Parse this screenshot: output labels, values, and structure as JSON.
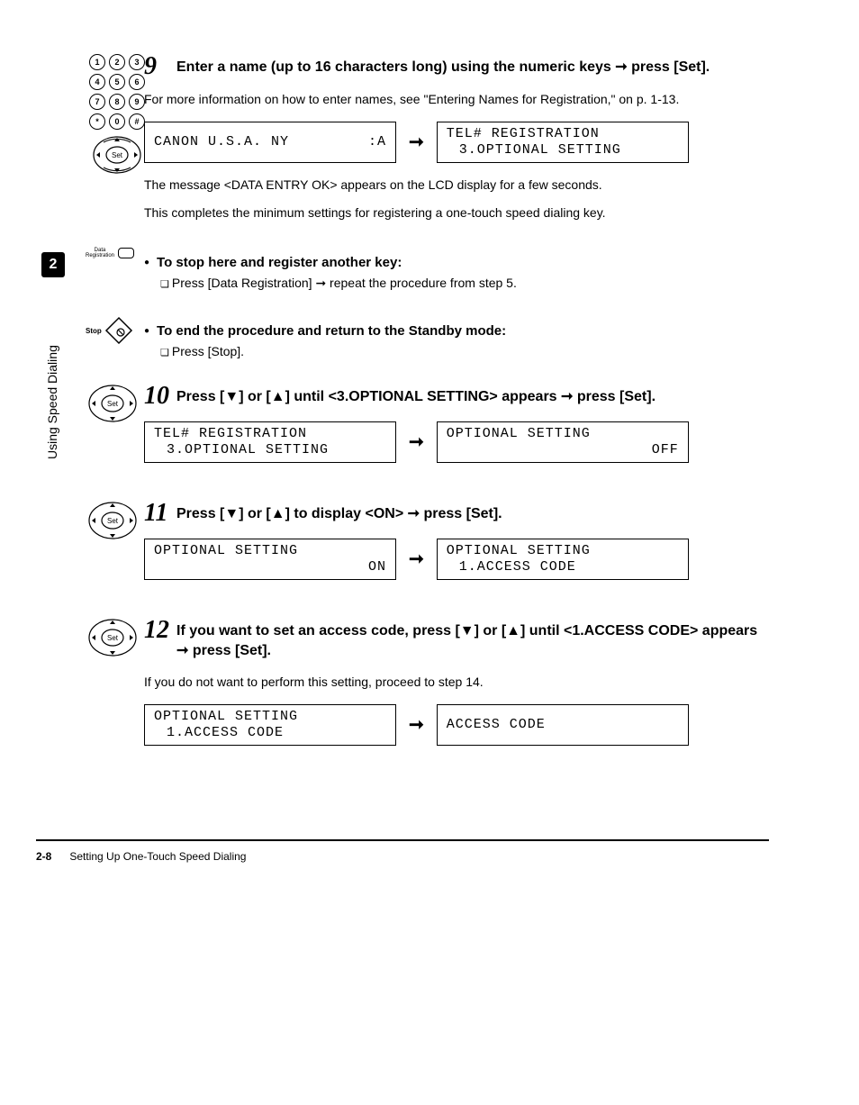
{
  "sidebar": {
    "chapter_num": "2",
    "chapter_title": "Using Speed Dialing"
  },
  "keypad": {
    "keys": [
      "1",
      "2",
      "3",
      "4",
      "5",
      "6",
      "7",
      "8",
      "9",
      "*",
      "0",
      "#"
    ]
  },
  "navset_label": "Set",
  "datareg": {
    "line1": "Data",
    "line2": "Registration"
  },
  "stop_label": "Stop",
  "steps": {
    "s9": {
      "num": "9",
      "title_a": "Enter a name (up to 16 characters long) using the numeric keys ",
      "title_b": " press [Set].",
      "body": "For more information on how to enter names, see \"Entering Names for Registration,\" on p. 1-13.",
      "lcd_a1": "CANON U.S.A. NY",
      "lcd_a2": ":A",
      "lcd_b1": "TEL# REGISTRATION",
      "lcd_b2": "3.OPTIONAL SETTING",
      "after1": "The message <DATA ENTRY OK> appears on the LCD display for a few seconds.",
      "after2": "This completes the minimum settings for registering a one-touch speed dialing key."
    },
    "sub1": {
      "head": "To stop here and register another key:",
      "body_a": "Press [Data Registration] ",
      "body_b": " repeat the procedure from step 5."
    },
    "sub2": {
      "head": "To end the procedure and return to the Standby mode:",
      "body": "Press [Stop]."
    },
    "s10": {
      "num": "10",
      "title_a": "Press [▼] or [▲] until <3.OPTIONAL SETTING> appears ",
      "title_b": " press [Set].",
      "lcd_a1": "TEL# REGISTRATION",
      "lcd_a2": "3.OPTIONAL SETTING",
      "lcd_b1": "OPTIONAL SETTING",
      "lcd_b2": "OFF"
    },
    "s11": {
      "num": "11",
      "title_a": "Press [▼] or [▲] to display <ON> ",
      "title_b": " press [Set].",
      "lcd_a1": "OPTIONAL SETTING",
      "lcd_a2": "ON",
      "lcd_b1": "OPTIONAL SETTING",
      "lcd_b2": "1.ACCESS CODE"
    },
    "s12": {
      "num": "12",
      "title_a": "If you want to set an access code, press [▼] or [▲] until <1.ACCESS CODE> appears ",
      "title_b": " press [Set].",
      "body": "If you do not want to perform this setting, proceed to step 14.",
      "lcd_a1": "OPTIONAL SETTING",
      "lcd_a2": "1.ACCESS CODE",
      "lcd_b1": "ACCESS CODE",
      "lcd_b2": ""
    }
  },
  "footer": {
    "page": "2-8",
    "title": "Setting Up One-Touch Speed Dialing"
  },
  "arrow": "➞"
}
